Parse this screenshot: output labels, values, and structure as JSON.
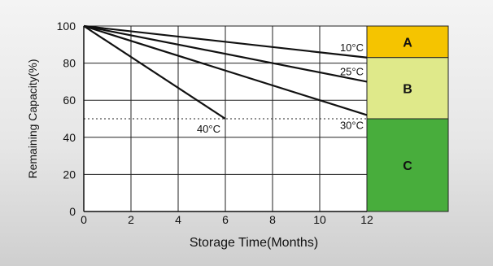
{
  "chart_data": {
    "type": "line",
    "xlabel": "Storage Time(Months)",
    "ylabel": "Remaining Capacity(%)",
    "xlim": [
      0,
      12
    ],
    "ylim": [
      0,
      100
    ],
    "xticks": [
      0,
      2,
      4,
      6,
      8,
      10,
      12
    ],
    "yticks": [
      0,
      20,
      40,
      60,
      80,
      100
    ],
    "grid": true,
    "series": [
      {
        "name": "10°C",
        "x": [
          0,
          12
        ],
        "y": [
          100,
          83
        ]
      },
      {
        "name": "25°C",
        "x": [
          0,
          12
        ],
        "y": [
          100,
          70
        ]
      },
      {
        "name": "30°C",
        "x": [
          0,
          12
        ],
        "y": [
          100,
          52
        ]
      },
      {
        "name": "40°C",
        "x": [
          0,
          6
        ],
        "y": [
          100,
          50
        ]
      }
    ],
    "reference_line": {
      "y": 50,
      "style": "dotted"
    },
    "zones": [
      {
        "label": "A",
        "from": 83,
        "to": 100,
        "color": "#f5c400"
      },
      {
        "label": "B",
        "from": 50,
        "to": 83,
        "color": "#dfe98a"
      },
      {
        "label": "C",
        "from": 0,
        "to": 50,
        "color": "#48ad3c"
      }
    ]
  }
}
